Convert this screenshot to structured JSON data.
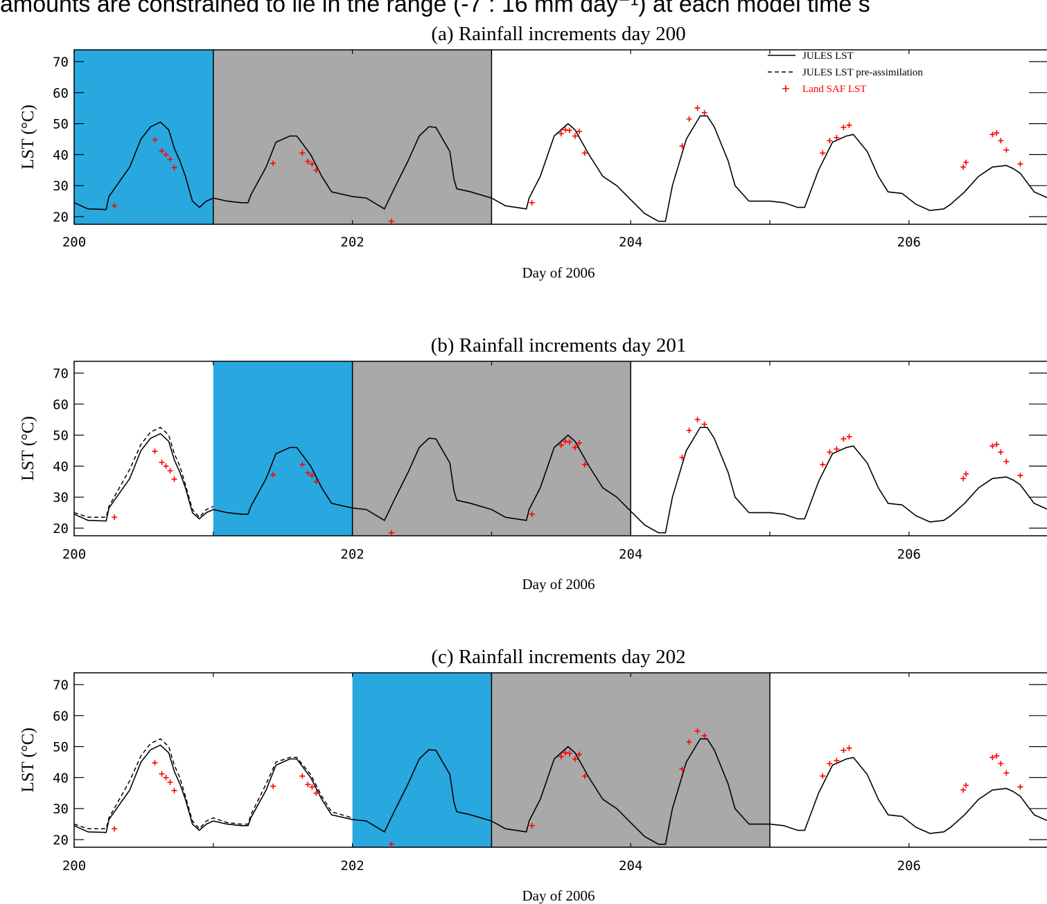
{
  "caption": "amounts are constrained to lie in the range (-7 : 16 mm day⁻¹) at each model time s",
  "colors": {
    "increment_window": "#29a8e0",
    "response_window": "#a9a9a9",
    "observations": "#ff0000",
    "model": "#000000"
  },
  "chart_data": [
    {
      "type": "line",
      "title": "(a) Rainfall increments day 200",
      "xlabel": "Day of 2006",
      "ylabel": "LST (°C)",
      "xlim": [
        200,
        207
      ],
      "ylim": [
        18,
        73
      ],
      "xticks": [
        "200",
        "202",
        "204",
        "206"
      ],
      "yticks": [
        "20",
        "30",
        "40",
        "50",
        "60",
        "70"
      ],
      "blue_window": [
        200,
        201
      ],
      "gray_window": [
        201,
        203
      ],
      "show_pre_assimilation": false,
      "legend": {
        "placement": "top-right",
        "entries": [
          "JULES LST",
          "JULES LST pre-assimilation",
          "Land SAF LST"
        ]
      }
    },
    {
      "type": "line",
      "title": "(b) Rainfall increments day 201",
      "xlabel": "Day of 2006",
      "ylabel": "LST (°C)",
      "xlim": [
        200,
        207
      ],
      "ylim": [
        18,
        73
      ],
      "xticks": [
        "200",
        "202",
        "204",
        "206"
      ],
      "yticks": [
        "20",
        "30",
        "40",
        "50",
        "60",
        "70"
      ],
      "blue_window": [
        201,
        202
      ],
      "gray_window": [
        202,
        204
      ],
      "show_pre_assimilation": true,
      "pre_until": 201
    },
    {
      "type": "line",
      "title": "(c) Rainfall increments day 202",
      "xlabel": "Day of 2006",
      "ylabel": "LST (°C)",
      "xlim": [
        200,
        207
      ],
      "ylim": [
        18,
        73
      ],
      "xticks": [
        "200",
        "202",
        "204",
        "206"
      ],
      "yticks": [
        "20",
        "30",
        "40",
        "50",
        "60",
        "70"
      ],
      "blue_window": [
        202,
        203
      ],
      "gray_window": [
        203,
        205
      ],
      "show_pre_assimilation": true,
      "pre_until": 202
    }
  ],
  "series": {
    "jules_lst": [
      [
        200.0,
        24.5
      ],
      [
        200.1,
        22.5
      ],
      [
        200.23,
        22.3
      ],
      [
        200.25,
        26.5
      ],
      [
        200.4,
        36
      ],
      [
        200.48,
        45
      ],
      [
        200.55,
        49
      ],
      [
        200.62,
        50.5
      ],
      [
        200.68,
        48
      ],
      [
        200.72,
        42
      ],
      [
        200.76,
        38
      ],
      [
        200.8,
        33
      ],
      [
        200.85,
        25
      ],
      [
        200.9,
        23
      ],
      [
        200.95,
        25
      ],
      [
        201.0,
        26
      ],
      [
        201.1,
        25
      ],
      [
        201.2,
        24.5
      ],
      [
        201.25,
        24.5
      ],
      [
        201.27,
        27
      ],
      [
        201.38,
        36
      ],
      [
        201.45,
        44
      ],
      [
        201.55,
        46
      ],
      [
        201.6,
        46
      ],
      [
        201.7,
        40
      ],
      [
        201.78,
        33
      ],
      [
        201.85,
        28
      ],
      [
        202.0,
        26.5
      ],
      [
        202.1,
        26
      ],
      [
        202.23,
        22.5
      ],
      [
        202.3,
        29
      ],
      [
        202.4,
        38
      ],
      [
        202.48,
        46
      ],
      [
        202.55,
        49
      ],
      [
        202.6,
        48.8
      ],
      [
        202.7,
        41
      ],
      [
        202.73,
        32
      ],
      [
        202.75,
        29
      ],
      [
        202.85,
        28
      ],
      [
        203.0,
        26
      ],
      [
        203.1,
        23.5
      ],
      [
        203.25,
        22.5
      ],
      [
        203.27,
        26
      ],
      [
        203.35,
        33
      ],
      [
        203.45,
        46
      ],
      [
        203.55,
        50
      ],
      [
        203.6,
        48
      ],
      [
        203.7,
        40
      ],
      [
        203.8,
        33
      ],
      [
        203.9,
        30
      ],
      [
        204.0,
        25.5
      ],
      [
        204.1,
        21
      ],
      [
        204.2,
        18.5
      ],
      [
        204.25,
        18.5
      ],
      [
        204.3,
        30
      ],
      [
        204.4,
        45
      ],
      [
        204.5,
        52.5
      ],
      [
        204.55,
        52.5
      ],
      [
        204.6,
        49
      ],
      [
        204.7,
        38
      ],
      [
        204.75,
        30
      ],
      [
        204.85,
        25
      ],
      [
        205.0,
        25
      ],
      [
        205.1,
        24.5
      ],
      [
        205.2,
        23
      ],
      [
        205.25,
        23
      ],
      [
        205.35,
        35
      ],
      [
        205.45,
        44
      ],
      [
        205.55,
        46
      ],
      [
        205.6,
        46.5
      ],
      [
        205.7,
        41
      ],
      [
        205.78,
        33
      ],
      [
        205.85,
        28
      ],
      [
        205.95,
        27.5
      ],
      [
        206.05,
        24
      ],
      [
        206.15,
        22
      ],
      [
        206.25,
        22.5
      ],
      [
        206.3,
        24
      ],
      [
        206.4,
        28
      ],
      [
        206.5,
        33
      ],
      [
        206.6,
        36
      ],
      [
        206.7,
        36.5
      ],
      [
        206.75,
        35.5
      ],
      [
        206.8,
        34
      ],
      [
        206.9,
        28
      ],
      [
        207.0,
        26
      ],
      [
        207.1,
        23
      ]
    ],
    "jules_lst_pre_assimilation": [
      [
        200.0,
        25
      ],
      [
        200.1,
        23.5
      ],
      [
        200.23,
        23.5
      ],
      [
        200.25,
        27
      ],
      [
        200.4,
        39
      ],
      [
        200.48,
        47
      ],
      [
        200.55,
        51
      ],
      [
        200.62,
        52.5
      ],
      [
        200.68,
        50
      ],
      [
        200.72,
        44
      ],
      [
        200.76,
        40
      ],
      [
        200.8,
        34
      ],
      [
        200.85,
        26
      ],
      [
        200.9,
        23.5
      ],
      [
        200.95,
        26
      ],
      [
        201.0,
        27
      ],
      [
        201.1,
        25.5
      ],
      [
        201.2,
        25
      ],
      [
        201.25,
        25
      ],
      [
        201.27,
        28
      ],
      [
        201.38,
        38
      ],
      [
        201.45,
        45
      ],
      [
        201.55,
        46.5
      ],
      [
        201.6,
        46.5
      ],
      [
        201.7,
        41
      ],
      [
        201.78,
        34
      ],
      [
        201.85,
        29
      ],
      [
        202.0,
        27
      ]
    ],
    "land_saf_lst": [
      [
        200.29,
        23.5
      ],
      [
        200.58,
        44.8
      ],
      [
        200.63,
        41.2
      ],
      [
        200.66,
        40
      ],
      [
        200.69,
        38.5
      ],
      [
        200.72,
        35.8
      ],
      [
        201.43,
        37.2
      ],
      [
        201.64,
        40.5
      ],
      [
        201.68,
        37.8
      ],
      [
        201.71,
        37
      ],
      [
        201.74,
        35
      ],
      [
        202.28,
        18.5
      ],
      [
        203.29,
        24.5
      ],
      [
        203.5,
        46.8
      ],
      [
        203.53,
        48
      ],
      [
        203.56,
        47.8
      ],
      [
        203.6,
        46
      ],
      [
        203.63,
        47.5
      ],
      [
        203.67,
        40.5
      ],
      [
        204.37,
        42.8
      ],
      [
        204.42,
        51.5
      ],
      [
        204.48,
        55
      ],
      [
        204.53,
        53.5
      ],
      [
        205.38,
        40.5
      ],
      [
        205.43,
        44.5
      ],
      [
        205.48,
        45.5
      ],
      [
        205.53,
        48.8
      ],
      [
        205.57,
        49.5
      ],
      [
        206.39,
        36
      ],
      [
        206.41,
        37.5
      ],
      [
        206.6,
        46.5
      ],
      [
        206.63,
        47
      ],
      [
        206.66,
        44.5
      ],
      [
        206.7,
        41.5
      ],
      [
        206.8,
        37
      ]
    ]
  }
}
